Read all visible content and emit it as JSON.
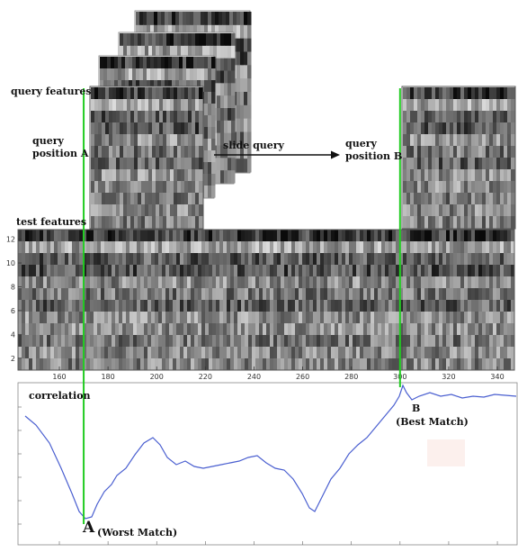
{
  "labels": {
    "query_features": "query features",
    "query_position_a": [
      "query",
      "position A"
    ],
    "slide_query": "slide query",
    "query_position_b": [
      "query",
      "position B"
    ],
    "test_features": "test features",
    "correlation": "correlation",
    "point_a_letter": "A",
    "point_a_text": "(Worst Match)",
    "point_b_letter": "B",
    "point_b_text": "(Best Match)"
  },
  "test_features": {
    "y_ticks": [
      2,
      4,
      6,
      8,
      10,
      12
    ],
    "x_ticks": [
      160,
      180,
      200,
      220,
      240,
      260,
      280,
      300,
      320,
      340
    ],
    "x_range": [
      143,
      347
    ],
    "y_range": [
      1,
      12.5
    ]
  },
  "correlation": {
    "x_range": [
      143,
      347
    ],
    "query_position_a_x": 170,
    "query_position_b_x": 300
  },
  "colors": {
    "marker_line": "#22cc22",
    "correlation_curve": "#4a5fd0",
    "axis": "#555555"
  }
}
